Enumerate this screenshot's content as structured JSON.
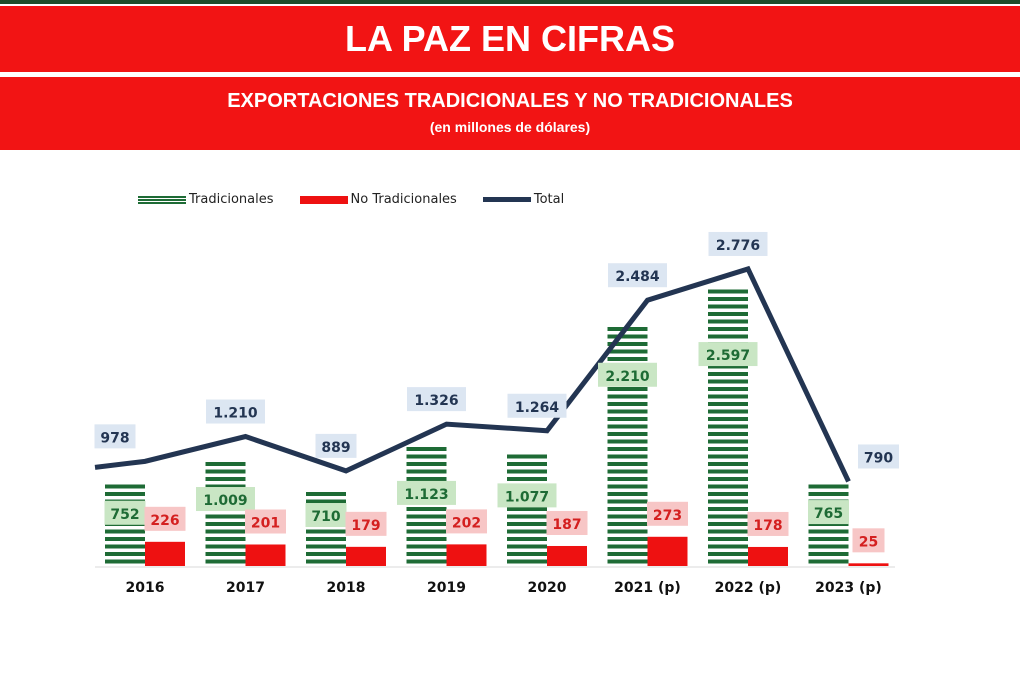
{
  "header": {
    "title": "LA PAZ EN CIFRAS"
  },
  "chart_data": {
    "type": "bar",
    "title": "EXPORTACIONES TRADICIONALES Y NO TRADICIONALES",
    "subtitle": "(en millones de dólares)",
    "categories": [
      "2016",
      "2017",
      "2018",
      "2019",
      "2020",
      "2021 (p)",
      "2022 (p)",
      "2023 (p)"
    ],
    "series": [
      {
        "name": "Tradicionales",
        "type": "bar",
        "color": "#1e6b35",
        "values": [
          752,
          1009,
          710,
          1123,
          1077,
          2210,
          2597,
          765
        ],
        "labels": [
          "752",
          "1.009",
          "710",
          "1.123",
          "1.077",
          "2.210",
          "2.597",
          "765"
        ]
      },
      {
        "name": "No Tradicionales",
        "type": "bar",
        "color": "#ee1111",
        "values": [
          226,
          201,
          179,
          202,
          187,
          273,
          178,
          25
        ],
        "labels": [
          "226",
          "201",
          "179",
          "202",
          "187",
          "273",
          "178",
          "25"
        ]
      },
      {
        "name": "Total",
        "type": "line",
        "color": "#233552",
        "values": [
          978,
          1210,
          889,
          1326,
          1264,
          2484,
          2776,
          790
        ],
        "labels": [
          "978",
          "1.210",
          "889",
          "1.326",
          "1.264",
          "2.484",
          "2.776",
          "790"
        ]
      }
    ],
    "legend": "top-left",
    "grid": false
  }
}
